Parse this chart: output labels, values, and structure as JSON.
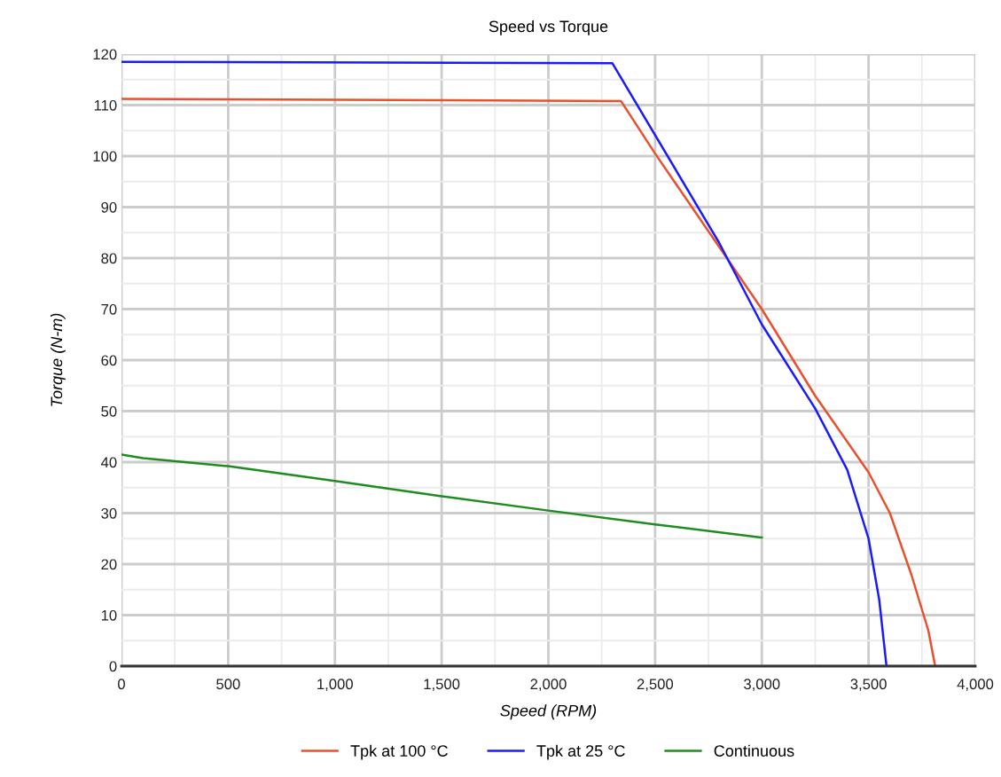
{
  "chart_data": {
    "type": "line",
    "title": "Speed vs Torque",
    "xlabel": "Speed (RPM)",
    "ylabel": "Torque (N-m)",
    "xlim": [
      0,
      4000
    ],
    "ylim": [
      0,
      120
    ],
    "xticks": [
      0,
      {
        "value": 250,
        "label": null
      },
      500,
      {
        "value": 750,
        "label": null
      },
      {
        "value": 1000,
        "label": "1,000"
      },
      {
        "value": 1250,
        "label": null
      },
      {
        "value": 1500,
        "label": "1,500"
      },
      {
        "value": 1750,
        "label": null
      },
      {
        "value": 2000,
        "label": "2,000"
      },
      {
        "value": 2250,
        "label": null
      },
      {
        "value": 2500,
        "label": "2,500"
      },
      {
        "value": 2750,
        "label": null
      },
      {
        "value": 3000,
        "label": "3,000"
      },
      {
        "value": 3250,
        "label": null
      },
      {
        "value": 3500,
        "label": "3,500"
      },
      {
        "value": 3750,
        "label": null
      },
      {
        "value": 4000,
        "label": "4,000"
      }
    ],
    "yticks": [
      0,
      {
        "value": 5,
        "label": null
      },
      10,
      {
        "value": 15,
        "label": null
      },
      20,
      {
        "value": 25,
        "label": null
      },
      30,
      {
        "value": 35,
        "label": null
      },
      40,
      {
        "value": 45,
        "label": null
      },
      50,
      {
        "value": 55,
        "label": null
      },
      60,
      {
        "value": 65,
        "label": null
      },
      70,
      {
        "value": 75,
        "label": null
      },
      80,
      {
        "value": 85,
        "label": null
      },
      90,
      {
        "value": 95,
        "label": null
      },
      100,
      {
        "value": 105,
        "label": null
      },
      110,
      {
        "value": 115,
        "label": null
      },
      120
    ],
    "grid": true,
    "legend": "bottom",
    "marker": "none",
    "line_style": "solid",
    "series": [
      {
        "name": "Tpk at 100 °C",
        "color": "#e8502e",
        "x": [
          0,
          2340,
          2500,
          3000,
          3250,
          3500,
          3600,
          3700,
          3780,
          3812
        ],
        "values": [
          111.2,
          110.8,
          100.5,
          70,
          53,
          38,
          30,
          18,
          7,
          0
        ]
      },
      {
        "name": "Tpk at 25 °C",
        "color": "#1a1aff",
        "x": [
          0,
          2300,
          2800,
          3000,
          3250,
          3400,
          3500,
          3550,
          3584
        ],
        "values": [
          118.5,
          118.2,
          83,
          67,
          50.5,
          38.5,
          25,
          13,
          0
        ]
      },
      {
        "name": "Continuous",
        "color": "#1e8c1e",
        "x": [
          0,
          100,
          500,
          1000,
          1500,
          2000,
          2500,
          3000
        ],
        "values": [
          41.5,
          40.8,
          39.2,
          36.3,
          33.3,
          30.5,
          27.8,
          25.2
        ]
      }
    ]
  }
}
